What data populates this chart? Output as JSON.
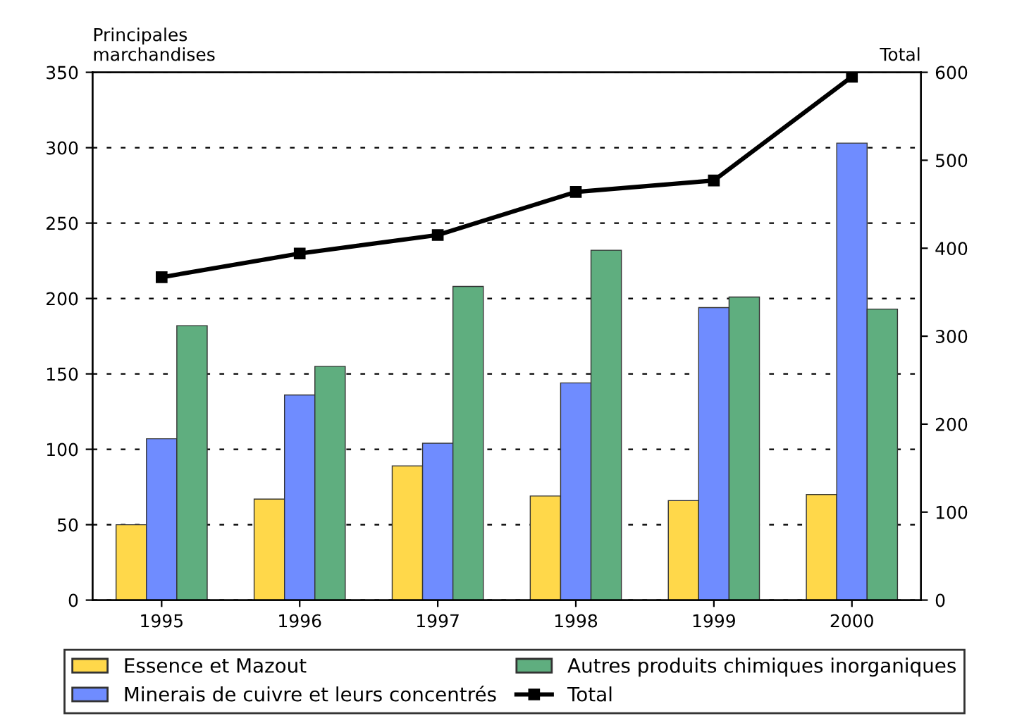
{
  "chart_data": {
    "type": "bar",
    "ylabel": "Principales\nmarchandises",
    "y2label": "Total",
    "categories": [
      "1995",
      "1996",
      "1997",
      "1998",
      "1999",
      "2000"
    ],
    "series": [
      {
        "name": "Essence et Mazout",
        "color": "#ffd84a",
        "values": [
          50,
          67,
          89,
          69,
          66,
          70
        ]
      },
      {
        "name": "Minerais de cuivre et leurs concentrés",
        "color": "#6f8cff",
        "values": [
          107,
          136,
          104,
          144,
          194,
          303
        ]
      },
      {
        "name": "Autres produits chimiques inorganiques",
        "color": "#5fae7f",
        "values": [
          182,
          155,
          208,
          232,
          201,
          193
        ]
      },
      {
        "name": "Total",
        "type": "line",
        "axis": "y2",
        "color": "#000000",
        "marker": "square",
        "values": [
          367,
          394,
          415,
          464,
          477,
          595
        ]
      }
    ],
    "ylim": [
      0,
      350
    ],
    "yticks": [
      0,
      50,
      100,
      150,
      200,
      250,
      300,
      350
    ],
    "y2lim": [
      0,
      600
    ],
    "y2ticks": [
      0,
      100,
      200,
      300,
      400,
      500,
      600
    ],
    "grid": "y",
    "legend": "bottom"
  }
}
